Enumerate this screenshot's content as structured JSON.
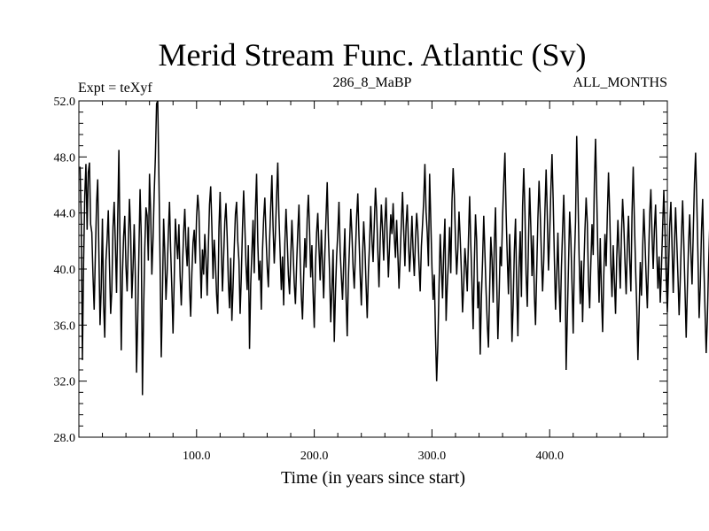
{
  "chart_data": {
    "type": "line",
    "title": "Merid Stream Func. Atlantic (Sv)",
    "subtitle_left": "Expt = teXyf",
    "subtitle_center": "286_8_MaBP",
    "subtitle_right": "ALL_MONTHS",
    "xlabel": "Time (in years since start)",
    "ylabel": "",
    "xlim": [
      0,
      500
    ],
    "ylim": [
      28,
      52
    ],
    "x_ticks": [
      100,
      200,
      300,
      400
    ],
    "x_tick_labels": [
      "100.0",
      "200.0",
      "300.0",
      "400.0"
    ],
    "y_ticks": [
      28,
      32,
      36,
      40,
      44,
      48,
      52
    ],
    "y_tick_labels": [
      "28.0",
      "32.0",
      "36.0",
      "40.0",
      "44.0",
      "48.0",
      "52.0"
    ],
    "grid": false,
    "line_color": "#000000",
    "series": [
      {
        "x_start": 1,
        "x_step": 1,
        "values": [
          47.3,
          43.5,
          33.5,
          40.4,
          45.2,
          47.5,
          42.8,
          46.9,
          47.6,
          43.2,
          42.6,
          39.5,
          37.1,
          41.0,
          44.6,
          46.4,
          41.2,
          36.0,
          38.7,
          43.6,
          37.5,
          35.1,
          40.6,
          42.1,
          44.2,
          40.3,
          36.8,
          38.5,
          43.0,
          44.8,
          41.7,
          38.3,
          43.6,
          48.5,
          41.5,
          34.2,
          39.6,
          42.3,
          43.8,
          40.2,
          38.4,
          41.8,
          45.0,
          42.6,
          37.9,
          40.1,
          43.2,
          39.4,
          32.6,
          36.4,
          41.2,
          45.7,
          42.3,
          31.0,
          36.9,
          41.5,
          44.4,
          43.8,
          40.6,
          46.8,
          44.0,
          39.6,
          42.1,
          45.4,
          48.0,
          51.8,
          52.0,
          46.6,
          40.5,
          33.7,
          38.1,
          43.6,
          41.2,
          37.8,
          39.7,
          42.5,
          44.8,
          41.3,
          38.6,
          35.4,
          39.2,
          43.6,
          41.9,
          40.7,
          43.2,
          39.5,
          37.4,
          40.1,
          42.6,
          44.3,
          41.7,
          40.2,
          43.0,
          38.8,
          36.6,
          39.7,
          41.9,
          42.8,
          40.4,
          43.7,
          45.3,
          44.1,
          40.8,
          37.9,
          41.4,
          39.6,
          42.5,
          40.7,
          38.1,
          41.5,
          44.6,
          45.9,
          43.0,
          39.3,
          42.1,
          40.5,
          38.2,
          36.8,
          42.9,
          45.5,
          41.6,
          38.4,
          40.9,
          43.4,
          44.7,
          42.3,
          39.1,
          37.2,
          40.8,
          36.3,
          38.7,
          41.5,
          43.9,
          44.8,
          42.0,
          40.6,
          36.8,
          39.4,
          42.9,
          45.6,
          43.1,
          40.3,
          38.5,
          41.7,
          34.3,
          38.9,
          41.2,
          43.5,
          39.7,
          44.2,
          46.8,
          42.0,
          39.2,
          40.6,
          37.1,
          41.3,
          43.6,
          45.1,
          42.4,
          40.2,
          38.7,
          41.9,
          44.4,
          46.7,
          43.0,
          40.4,
          42.6,
          45.2,
          47.6,
          43.8,
          41.2,
          38.5,
          40.9,
          37.4,
          41.8,
          44.3,
          42.1,
          39.6,
          38.2,
          40.8,
          43.5,
          41.3,
          39.0,
          37.5,
          40.3,
          42.7,
          44.6,
          40.9,
          38.1,
          36.4,
          39.5,
          42.2,
          40.1,
          43.6,
          45.3,
          42.8,
          39.4,
          41.7,
          38.3,
          35.8,
          40.2,
          42.6,
          44.0,
          41.5,
          39.2,
          42.8,
          40.3,
          37.9,
          41.1,
          43.7,
          46.2,
          42.4,
          39.8,
          36.2,
          38.6,
          41.4,
          34.8,
          38.3,
          40.9,
          42.6,
          44.8,
          41.3,
          39.5,
          37.8,
          40.4,
          42.9,
          38.1,
          35.2,
          39.4,
          41.8,
          44.3,
          42.5,
          40.1,
          38.6,
          41.2,
          43.7,
          45.4,
          42.3,
          39.6,
          37.4,
          40.8,
          43.4,
          41.6,
          38.9,
          36.5,
          39.8,
          41.9,
          44.5,
          42.1,
          40.5,
          43.2,
          45.8,
          44.1,
          41.3,
          38.7,
          42.0,
          44.6,
          42.8,
          40.6,
          43.3,
          45.1,
          42.2,
          39.4,
          41.7,
          43.9,
          42.5,
          44.7,
          42.3,
          40.8,
          43.5,
          41.1,
          38.6,
          40.9,
          43.3,
          45.5,
          42.8,
          40.2,
          43.1,
          44.6,
          42.0,
          39.8,
          41.5,
          43.8,
          41.2,
          39.5,
          42.1,
          44.0,
          42.7,
          40.3,
          38.4,
          41.6,
          43.2,
          44.9,
          47.5,
          44.1,
          42.6,
          40.2,
          46.8,
          43.5,
          40.1,
          37.8,
          39.6,
          35.3,
          32.0,
          34.6,
          38.7,
          42.5,
          40.2,
          37.9,
          41.3,
          43.6,
          36.3,
          38.8,
          40.5,
          43.0,
          39.7,
          44.8,
          47.2,
          45.3,
          42.0,
          39.6,
          41.4,
          44.1,
          42.2,
          39.8,
          36.9,
          38.9,
          41.5,
          40.2,
          38.4,
          42.1,
          45.2,
          41.8,
          39.0,
          35.7,
          40.4,
          43.9,
          42.0,
          37.2,
          39.1,
          33.9,
          38.0,
          40.6,
          43.8,
          41.1,
          38.4,
          36.1,
          34.4,
          38.5,
          42.3,
          40.7,
          37.6,
          41.8,
          44.4,
          39.3,
          35.0,
          37.9,
          41.6,
          40.2,
          43.7,
          46.2,
          48.3,
          44.0,
          40.8,
          38.2,
          42.5,
          39.7,
          34.8,
          37.5,
          41.3,
          43.6,
          38.8,
          35.2,
          40.1,
          42.7,
          38.0,
          44.5,
          47.2,
          44.1,
          39.6,
          37.3,
          41.9,
          45.8,
          43.0,
          39.5,
          42.4,
          38.2,
          36.0,
          39.8,
          43.6,
          46.3,
          43.9,
          41.0,
          38.4,
          40.7,
          44.2,
          47.1,
          43.8,
          39.9,
          42.3,
          45.6,
          48.2,
          44.9,
          40.8,
          37.1,
          39.5,
          42.6,
          38.9,
          36.2,
          40.1,
          42.8,
          45.3,
          41.6,
          32.8,
          36.5,
          40.2,
          44.1,
          42.2,
          38.9,
          35.4,
          40.5,
          43.4,
          49.5,
          45.6,
          41.0,
          37.5,
          40.6,
          36.2,
          39.9,
          42.8,
          45.1,
          43.3,
          39.1,
          37.2,
          40.4,
          43.2,
          41.0,
          46.1,
          49.3,
          45.2,
          41.0,
          37.6,
          42.2,
          38.3,
          35.5,
          39.6,
          42.5,
          40.2,
          43.8,
          46.9,
          44.1,
          40.3,
          38.0,
          41.7,
          39.2,
          36.8,
          40.8,
          43.5,
          41.1,
          38.6,
          42.4,
          45.0,
          43.2,
          40.5,
          38.2,
          41.6,
          43.8,
          40.7,
          38.4,
          44.0,
          47.3,
          43.5,
          40.1,
          37.3,
          33.5,
          36.8,
          40.5,
          38.1,
          41.4,
          44.3,
          42.0,
          39.4,
          37.2,
          40.6,
          43.9,
          45.7,
          42.4,
          40.0,
          42.8,
          44.6,
          41.3,
          38.6,
          40.9,
          37.6,
          40.1,
          43.0,
          45.6,
          42.8,
          39.4,
          36.9,
          39.8,
          43.1,
          44.8,
          41.6,
          38.3,
          41.7,
          44.4,
          42.0,
          39.5,
          36.7,
          39.3,
          42.4,
          44.9,
          41.8,
          38.5,
          35.1,
          38.6,
          41.7,
          43.9,
          41.2,
          38.9,
          42.6,
          46.1,
          48.3,
          44.9,
          41.0,
          36.5,
          38.8,
          42.7,
          45.0,
          40.4,
          37.1,
          34.0,
          36.5,
          40.2,
          43.0,
          41.3,
          37.6,
          40.8,
          44.2,
          42.1,
          39.0,
          37.6,
          40.5,
          43.4,
          46.6,
          44.2,
          40.6,
          37.4,
          39.8,
          42.5,
          45.7,
          41.9,
          38.8,
          36.3,
          39.6,
          42.8,
          44.7,
          41.6,
          38.3,
          35.6,
          38.7,
          40.9,
          43.6,
          46.2,
          44.5,
          41.2,
          38.5,
          35.7,
          37.9,
          42.0,
          45.0,
          42.6,
          38.6,
          35.9,
          33.9,
          30.8,
          34.2,
          38.5,
          36.3,
          39.9,
          43.4,
          40.8,
          44.5,
          47.3,
          44.2,
          40.7,
          38.0,
          36.9,
          40.2,
          42.8,
          45.4,
          42.1,
          38.7,
          41.4,
          43.6,
          40.3,
          37.2,
          39.6,
          43.0,
          41.2,
          38.8,
          36.2,
          39.0,
          41.8,
          44.6,
          42.3,
          39.7,
          42.0,
          43.8,
          45.6,
          43.9,
          41.0,
          38.6,
          42.5,
          44.8,
          43.1,
          40.6,
          43.2,
          45.7,
          48.0,
          44.7,
          41.3,
          38.8,
          40.9,
          43.6,
          41.9,
          39.3,
          36.4,
          39.1,
          42.4,
          44.2,
          41.8,
          39.0,
          42.7,
          45.5,
          43.1,
          41.2,
          38.8,
          40.6,
          43.8,
          41.3,
          37.2,
          35.4,
          38.9,
          42.1,
          44.8,
          41.8,
          38.6,
          41.5,
          43.9,
          46.0,
          43.2,
          40.4,
          37.6,
          40.8,
          44.0,
          47.4,
          49.3,
          45.1,
          41.5,
          38.2,
          40.6,
          43.5,
          41.0,
          38.4,
          41.9,
          44.6,
          42.1,
          40.5,
          38.0,
          41.2,
          43.4,
          46.8,
          43.9,
          40.7,
          37.5,
          35.7,
          39.0,
          42.4,
          44.8,
          41.5,
          38.6,
          40.9,
          43.7,
          45.9,
          44.5,
          41.8,
          46.2,
          45.0,
          42.4,
          39.5,
          43.6,
          45.4,
          42.6,
          40.3,
          38.9,
          42.2,
          45.1,
          44.3,
          41.1,
          39.7,
          37.4,
          40.2,
          42.5,
          38.8,
          36.1,
          35.1,
          34.2,
          35.6,
          38.9,
          41.2,
          39.8,
          37.4,
          40.7
        ]
      }
    ]
  }
}
